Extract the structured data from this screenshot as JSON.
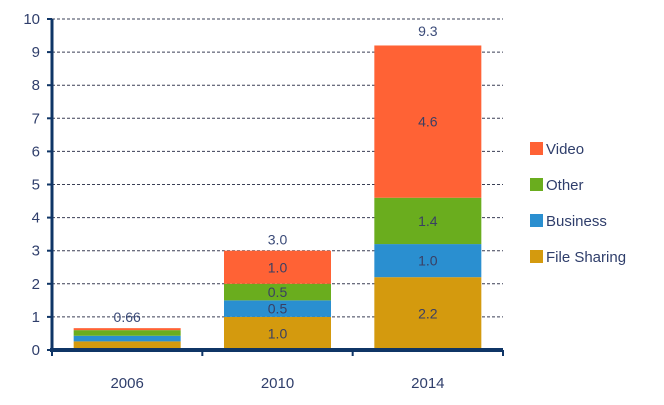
{
  "chart_data": {
    "type": "bar",
    "stacked": true,
    "title": "",
    "xlabel": "",
    "ylabel": "",
    "ylim": [
      0,
      10
    ],
    "yticks": [
      "0",
      "1",
      "2",
      "3",
      "4",
      "5",
      "6",
      "7",
      "8",
      "9",
      "10"
    ],
    "grid": true,
    "legend_position": "right",
    "categories": [
      "2006",
      "2010",
      "2014"
    ],
    "series": [
      {
        "name": "File Sharing",
        "color": "#d49a0e",
        "values": [
          0.26,
          1.0,
          2.2
        ],
        "labels": [
          "",
          "1.0",
          "2.2"
        ]
      },
      {
        "name": "Business",
        "color": "#2a8fd0",
        "values": [
          0.17,
          0.5,
          1.0
        ],
        "labels": [
          "",
          "0.5",
          "1.0"
        ]
      },
      {
        "name": "Other",
        "color": "#6aad1e",
        "values": [
          0.17,
          0.5,
          1.4
        ],
        "labels": [
          "",
          "0.5",
          "1.4"
        ]
      },
      {
        "name": "Video",
        "color": "#ff6235",
        "values": [
          0.06,
          1.0,
          4.6
        ],
        "labels": [
          "",
          "1.0",
          "4.6"
        ]
      }
    ],
    "totals": [
      0.66,
      3.0,
      9.3
    ],
    "total_labels": [
      "0.66",
      "3.0",
      "9.3"
    ],
    "legend_order": [
      "Video",
      "Other",
      "Business",
      "File Sharing"
    ],
    "axis_color": "#0f3566",
    "grid_color": "#3a3f55"
  }
}
